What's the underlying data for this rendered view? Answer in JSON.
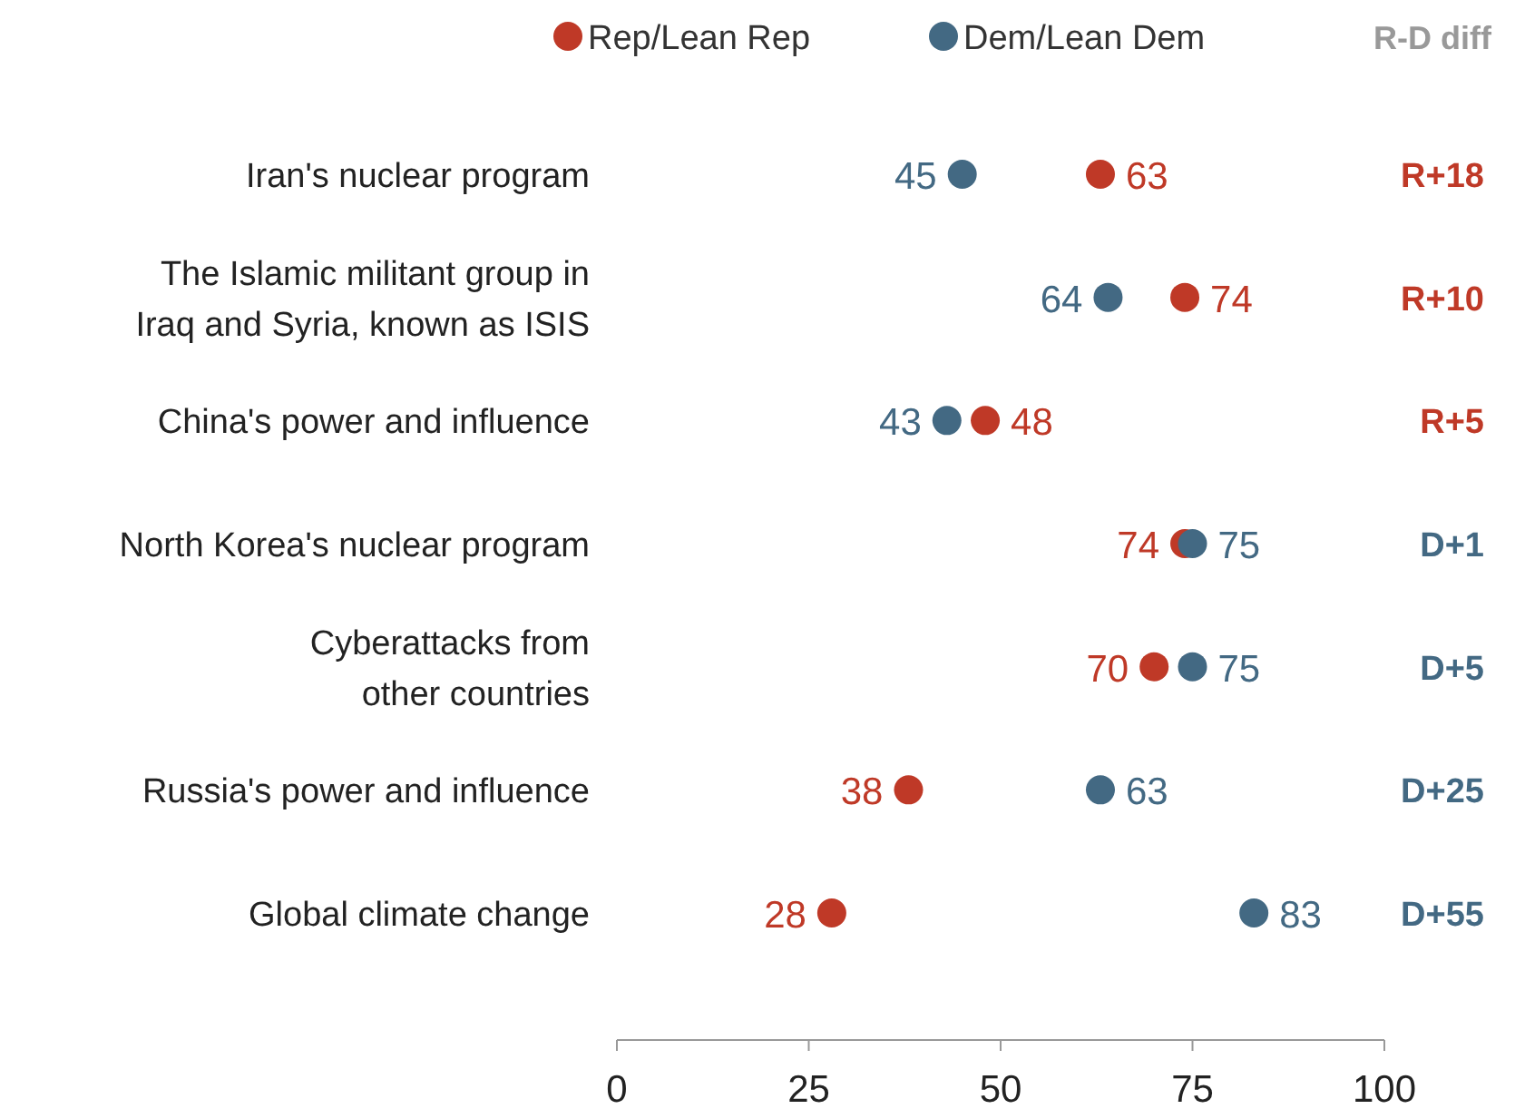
{
  "chart_data": {
    "type": "scatter",
    "orientation": "horizontal",
    "categories": [
      "Iran's nuclear program",
      "The Islamic militant group in\nIraq and Syria, known as ISIS",
      "China's power and influence",
      "North Korea's nuclear program",
      "Cyberattacks from\nother countries",
      "Russia's power and influence",
      "Global climate change"
    ],
    "series": [
      {
        "name": "Rep/Lean Rep",
        "color": "#bf3927",
        "values": [
          63,
          74,
          48,
          74,
          70,
          38,
          28
        ]
      },
      {
        "name": "Dem/Lean Dem",
        "color": "#436983",
        "values": [
          45,
          64,
          43,
          75,
          75,
          63,
          83
        ]
      }
    ],
    "xlim": [
      0,
      100
    ],
    "xticks": [
      0,
      25,
      50,
      75,
      100
    ],
    "data_labels": true,
    "legend": "top",
    "grid": false,
    "marker": "circle",
    "annotations": [
      "R-D diff",
      "R+18",
      "R+10",
      "R+5",
      "D+1",
      "D+5",
      "D+25",
      "D+55"
    ]
  }
}
